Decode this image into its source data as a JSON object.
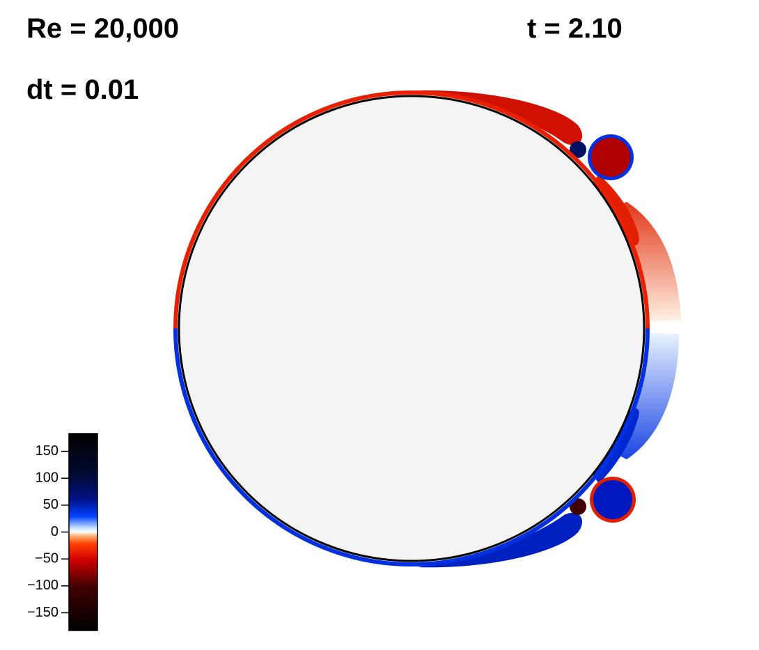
{
  "header": {
    "reynolds": "Re = 20,000",
    "time": "t = 2.10",
    "timestep": "dt = 0.01"
  },
  "colorbar": {
    "lim": [
      -183,
      183
    ],
    "ticks": [
      {
        "value": -150,
        "label": "−150"
      },
      {
        "value": -100,
        "label": "−100"
      },
      {
        "value": -50,
        "label": "−50"
      },
      0,
      50,
      100,
      150
    ]
  }
}
